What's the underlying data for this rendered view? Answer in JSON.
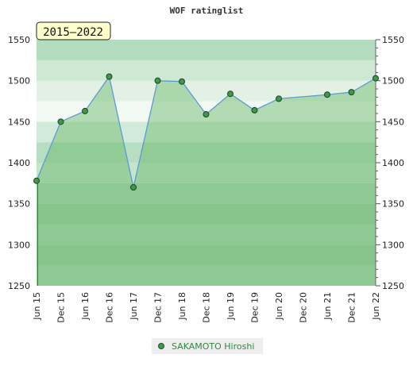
{
  "chart_data": {
    "type": "line",
    "title": "WOF ratinglist",
    "period_label": "2015–2022",
    "categories": [
      "Jun 15",
      "Dec 15",
      "Jun 16",
      "Dec 16",
      "Jun 17",
      "Dec 17",
      "Jun 18",
      "Dec 18",
      "Jun 19",
      "Dec 19",
      "Jun 20",
      "Dec 20",
      "Jun 21",
      "Dec 21",
      "Jun 22"
    ],
    "series": [
      {
        "name": "SAKAMOTO Hiroshi",
        "points": [
          {
            "x": 0,
            "y": 1378
          },
          {
            "x": 1,
            "y": 1450
          },
          {
            "x": 2,
            "y": 1463
          },
          {
            "x": 3,
            "y": 1505
          },
          {
            "x": 4,
            "y": 1370
          },
          {
            "x": 5,
            "y": 1500
          },
          {
            "x": 6,
            "y": 1499
          },
          {
            "x": 7,
            "y": 1459
          },
          {
            "x": 8,
            "y": 1484
          },
          {
            "x": 9,
            "y": 1464
          },
          {
            "x": 10,
            "y": 1478
          },
          {
            "x": 12,
            "y": 1483
          },
          {
            "x": 13,
            "y": 1486
          },
          {
            "x": 14,
            "y": 1503
          }
        ]
      }
    ],
    "ylim": [
      1250,
      1550
    ],
    "yticks": [
      1250,
      1300,
      1350,
      1400,
      1450,
      1500,
      1550
    ],
    "legend_position": "bottom-center",
    "colors": {
      "line": "#5b9bd5",
      "fill": "#5cb35e",
      "marker": "#3d9a4a",
      "legend_text": "#2e8b3e"
    }
  }
}
